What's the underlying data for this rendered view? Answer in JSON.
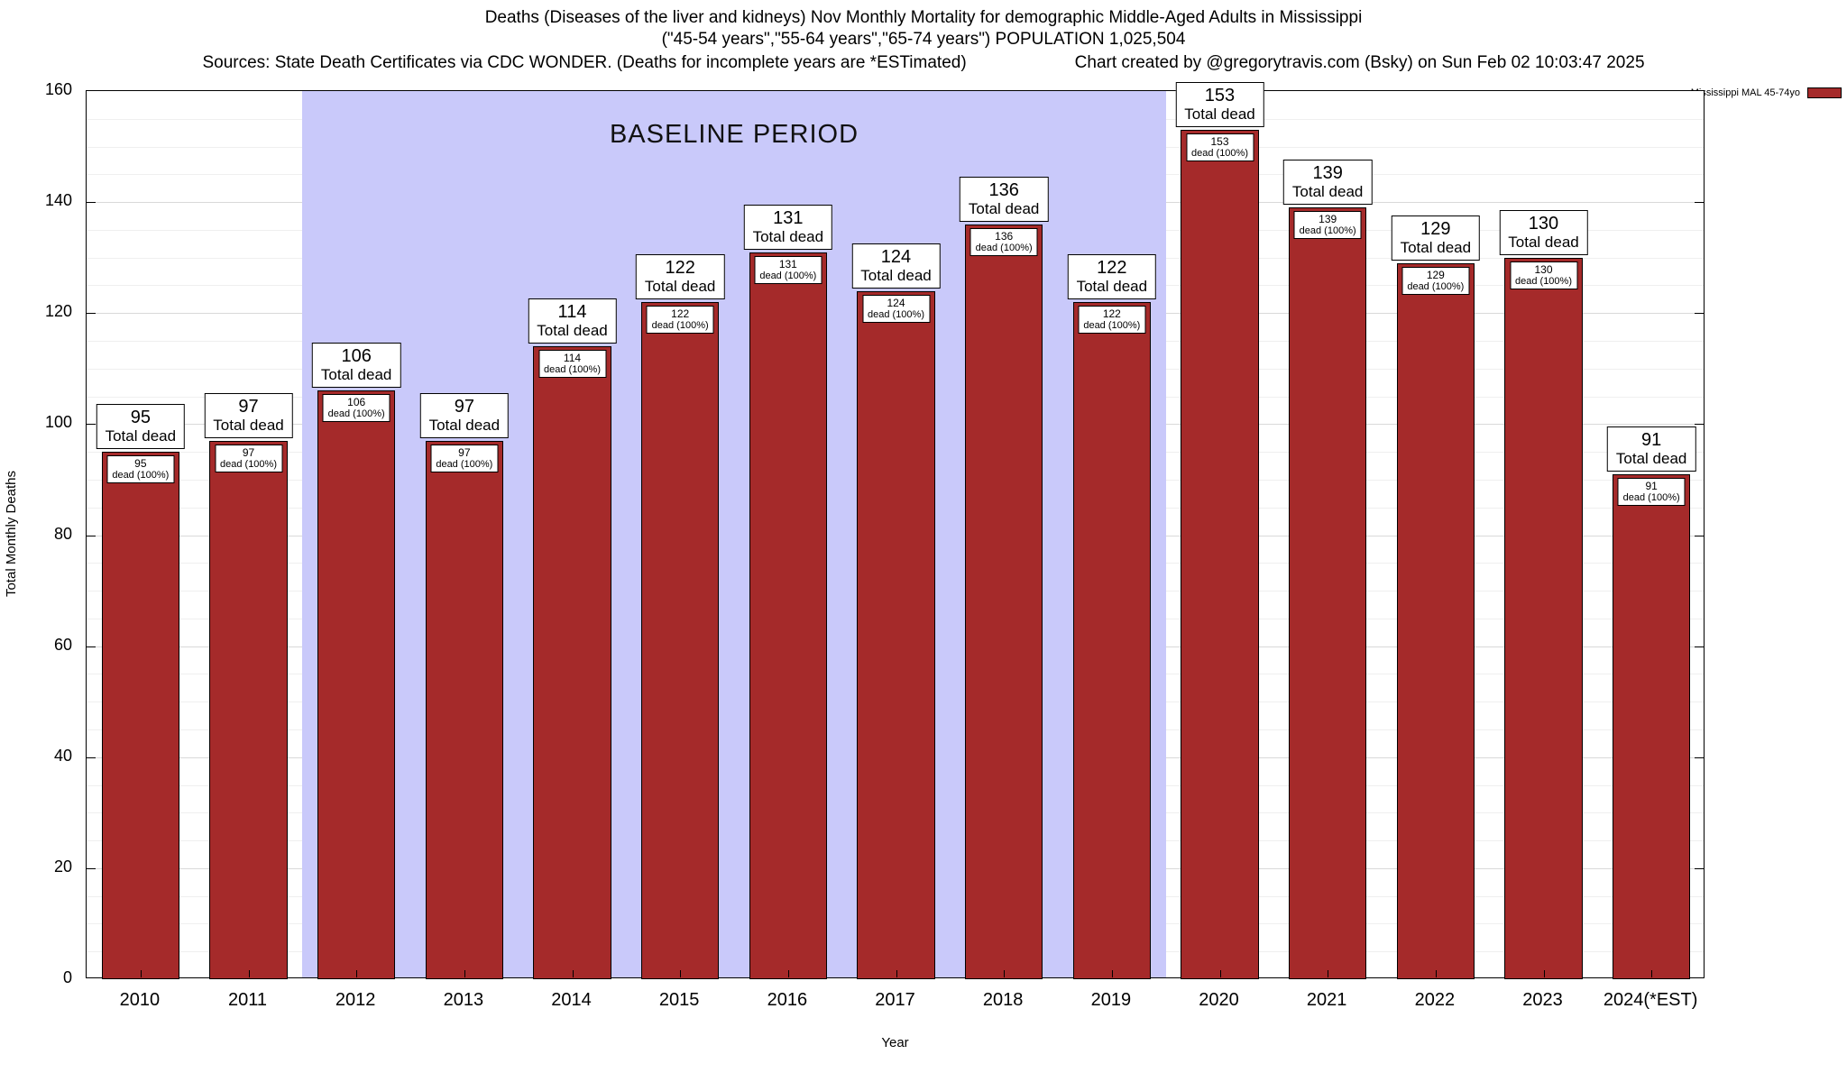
{
  "title": {
    "line1": "Deaths (Diseases of the liver and kidneys) Nov Monthly Mortality for demographic Middle-Aged Adults in Mississippi",
    "line2": "(\"45-54 years\",\"55-64 years\",\"65-74 years\") POPULATION 1,025,504",
    "line3_left": "Sources: State Death Certificates via CDC WONDER. (Deaths for incomplete years are *ESTimated)",
    "line3_right": "Chart created by @gregorytravis.com (Bsky) on Sun Feb 02 10:03:47 2025"
  },
  "legend": {
    "label": "Mississippi MAL 45-74yo",
    "swatch_color": "#a52a2a"
  },
  "baseline": {
    "label": "BASELINE PERIOD",
    "start_index": 2,
    "end_index": 9,
    "fill": "#c9c9fa"
  },
  "chart_data": {
    "type": "bar",
    "title": "Deaths (Diseases of the liver and kidneys) Nov Monthly Mortality for demographic Middle-Aged Adults in Mississippi",
    "xlabel": "Year",
    "ylabel": "Total Monthly Deaths",
    "ylim": [
      0,
      160
    ],
    "yticks": [
      0,
      20,
      40,
      60,
      80,
      100,
      120,
      140,
      160
    ],
    "grid": true,
    "legend_position": "top-right-outside",
    "bar_color": "#a52a2a",
    "categories": [
      "2010",
      "2011",
      "2012",
      "2013",
      "2014",
      "2015",
      "2016",
      "2017",
      "2018",
      "2019",
      "2020",
      "2021",
      "2022",
      "2023",
      "2024(*EST)"
    ],
    "values": [
      95,
      97,
      106,
      97,
      114,
      122,
      131,
      124,
      136,
      122,
      153,
      139,
      129,
      130,
      91
    ],
    "baseline_period_categories": [
      "2012",
      "2013",
      "2014",
      "2015",
      "2016",
      "2017",
      "2018",
      "2019"
    ],
    "top_label_suffix": "Total dead",
    "bar_label_suffix": "dead (100%)"
  }
}
